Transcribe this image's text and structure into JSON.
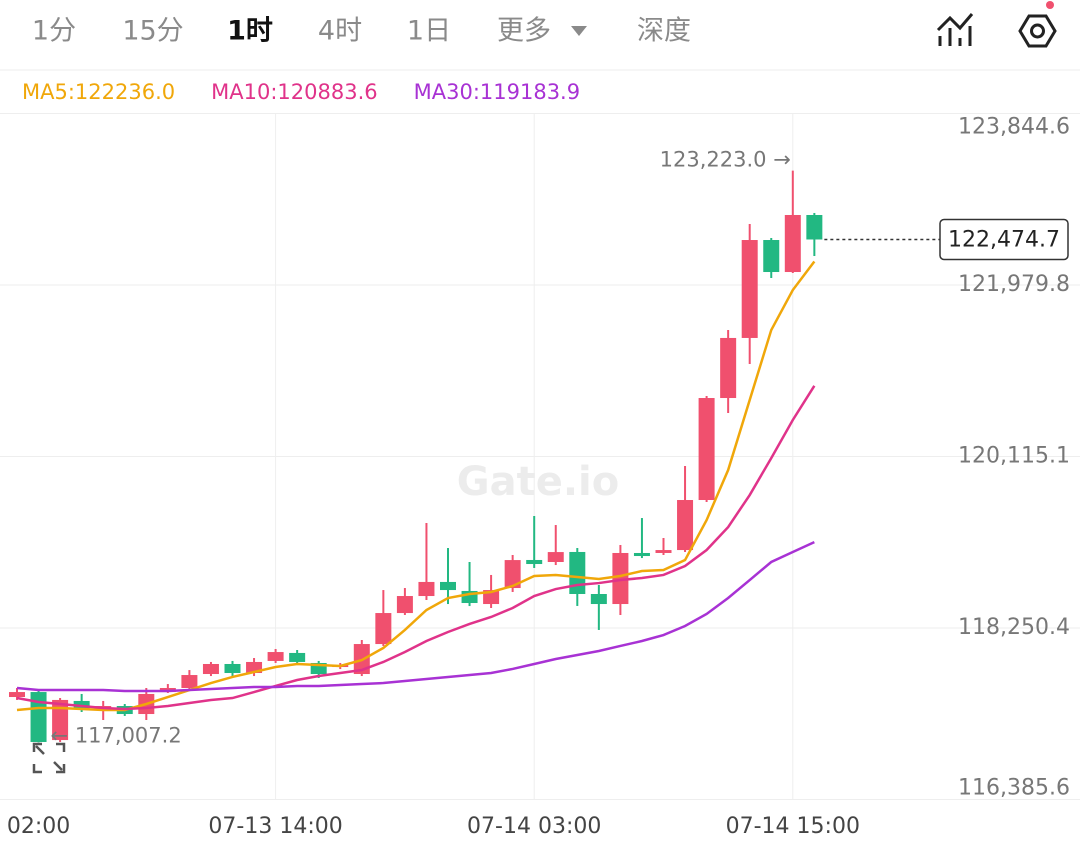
{
  "toolbar": {
    "tabs": [
      "1分",
      "15分",
      "1时",
      "4时",
      "1日",
      "更多",
      "深度"
    ],
    "active_tab": 2
  },
  "watermark": "Gate.io",
  "chart_data": {
    "type": "candlestick",
    "categories": [
      null,
      "02:00",
      null,
      null,
      null,
      null,
      null,
      null,
      null,
      null,
      null,
      null,
      "07-13 14:00",
      null,
      null,
      null,
      null,
      null,
      null,
      null,
      null,
      null,
      null,
      null,
      "07-14 03:00",
      null,
      null,
      null,
      null,
      null,
      null,
      null,
      null,
      null,
      null,
      null,
      "07-14 15:00",
      null
    ],
    "open": [
      117500,
      117554,
      117032,
      117457,
      117359,
      117402,
      117315,
      117554,
      117598,
      117750,
      117859,
      117761,
      117892,
      117979,
      117870,
      117826,
      117750,
      118076,
      118413,
      118598,
      118751,
      118653,
      118511,
      118685,
      118990,
      118968,
      119077,
      118620,
      118511,
      119066,
      119066,
      119098,
      119642,
      120751,
      121404,
      122469,
      122121,
      122741
    ],
    "high": [
      117598,
      117576,
      117489,
      117533,
      117457,
      117424,
      117598,
      117641,
      117793,
      117881,
      117892,
      117924,
      118022,
      118011,
      117892,
      117870,
      118120,
      118663,
      118685,
      119392,
      119120,
      118968,
      118827,
      119044,
      119468,
      119370,
      119120,
      118718,
      119153,
      119446,
      119229,
      120012,
      120773,
      121491,
      122643,
      122491,
      123223.0,
      122763
    ],
    "low": [
      117468,
      117007.2,
      117011,
      117337,
      117250,
      117294,
      117250,
      117544,
      117576,
      117728,
      117728,
      117728,
      117870,
      117848,
      117707,
      117804,
      117728,
      118055,
      118392,
      118555,
      118511,
      118489,
      118468,
      118642,
      118903,
      118935,
      118490,
      118229,
      118392,
      119011,
      119044,
      119077,
      119620,
      120588,
      121121,
      122056,
      122110,
      122295
    ],
    "close": [
      117554,
      117011,
      117468,
      117370,
      117402,
      117315,
      117533,
      117598,
      117739,
      117859,
      117761,
      117881,
      117989,
      117881,
      117750,
      117848,
      118076,
      118413,
      118598,
      118751,
      118663,
      118522,
      118663,
      118989,
      118946,
      119076,
      118620,
      118511,
      119066,
      119033,
      119098,
      119642,
      120751,
      121404,
      122469,
      122121,
      122741,
      122474.7
    ],
    "up_color": "#f0506e",
    "down_color": "#22b882",
    "series": [
      {
        "name": "MA5:122236.0",
        "color": "#f0a70a",
        "values": [
          117359,
          117380,
          117380,
          117370,
          117359,
          117359,
          117424,
          117500,
          117576,
          117652,
          117718,
          117772,
          117826,
          117859,
          117848,
          117837,
          117902,
          118033,
          118229,
          118446,
          118576,
          118620,
          118642,
          118707,
          118816,
          118827,
          118805,
          118783,
          118816,
          118870,
          118881,
          118989,
          119424,
          119968,
          120729,
          121490,
          121925,
          122236.0
        ]
      },
      {
        "name": "MA10:120883.6",
        "color": "#e0338a",
        "values": [
          117489,
          117446,
          117424,
          117402,
          117380,
          117370,
          117380,
          117402,
          117435,
          117468,
          117489,
          117554,
          117620,
          117685,
          117728,
          117761,
          117794,
          117881,
          117989,
          118109,
          118207,
          118294,
          118370,
          118468,
          118598,
          118674,
          118718,
          118739,
          118772,
          118794,
          118827,
          118924,
          119098,
          119348,
          119696,
          120098,
          120512,
          120883.6
        ]
      },
      {
        "name": "MA30:119183.9",
        "color": "#a832d4",
        "values": [
          117598,
          117576,
          117576,
          117576,
          117576,
          117565,
          117565,
          117565,
          117576,
          117587,
          117598,
          117609,
          117609,
          117620,
          117620,
          117631,
          117641,
          117652,
          117674,
          117696,
          117718,
          117739,
          117761,
          117805,
          117859,
          117913,
          117957,
          118000,
          118055,
          118109,
          118174,
          118272,
          118403,
          118577,
          118772,
          118968,
          119077,
          119183.9
        ]
      }
    ],
    "ylim": [
      116385.6,
      123844.6
    ],
    "yticks": [
      {
        "value": 116385.6,
        "label": "116,385.6"
      },
      {
        "value": 118250.4,
        "label": "118,250.4"
      },
      {
        "value": 120115.1,
        "label": "120,115.1"
      },
      {
        "value": 121979.8,
        "label": "121,979.8"
      },
      {
        "value": 123844.6,
        "label": "123,844.6"
      }
    ],
    "grid": true,
    "high_label": {
      "value": 123223.0,
      "label": "123,223.0 →"
    },
    "low_label": {
      "value": 117007.2,
      "label": "← 117,007.2"
    },
    "last_price": {
      "value": 122474.7,
      "label": "122,474.7"
    }
  }
}
